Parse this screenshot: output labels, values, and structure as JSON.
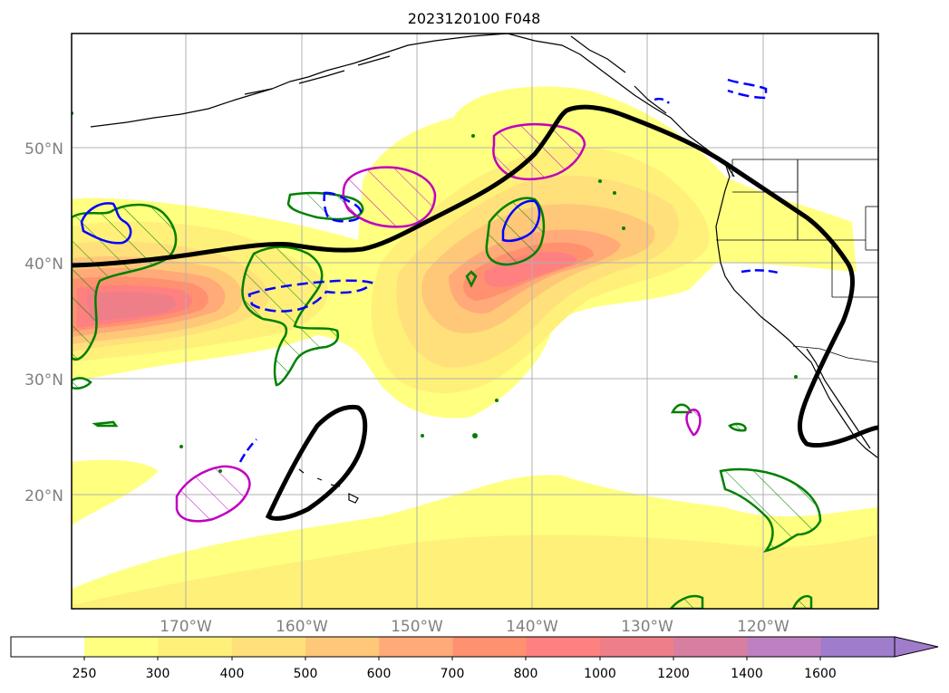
{
  "title": "2023120100 F048",
  "lat_labels": [
    "50°N",
    "40°N",
    "30°N",
    "20°N"
  ],
  "lon_labels": [
    "170°W",
    "160°W",
    "150°W",
    "140°W",
    "130°W",
    "120°W"
  ],
  "colorbar": {
    "labels": [
      "250",
      "300",
      "400",
      "500",
      "600",
      "700",
      "800",
      "1000",
      "1200",
      "1400",
      "1600"
    ],
    "colors": [
      "#ffffff",
      "#ffff80",
      "#fff07a",
      "#ffe07a",
      "#ffc878",
      "#ffaa78",
      "#ff9070",
      "#ff8080",
      "#ee7f88",
      "#d87ea0",
      "#be80c0",
      "#a07ccc"
    ],
    "extend": "max"
  },
  "colors": {
    "jet_contour": "#000000",
    "green_contour": "#008000",
    "blue_contour": "#0000ff",
    "magenta_contour": "#c000c0",
    "gridline": "#b0b0b0",
    "coastline": "#000000"
  }
}
